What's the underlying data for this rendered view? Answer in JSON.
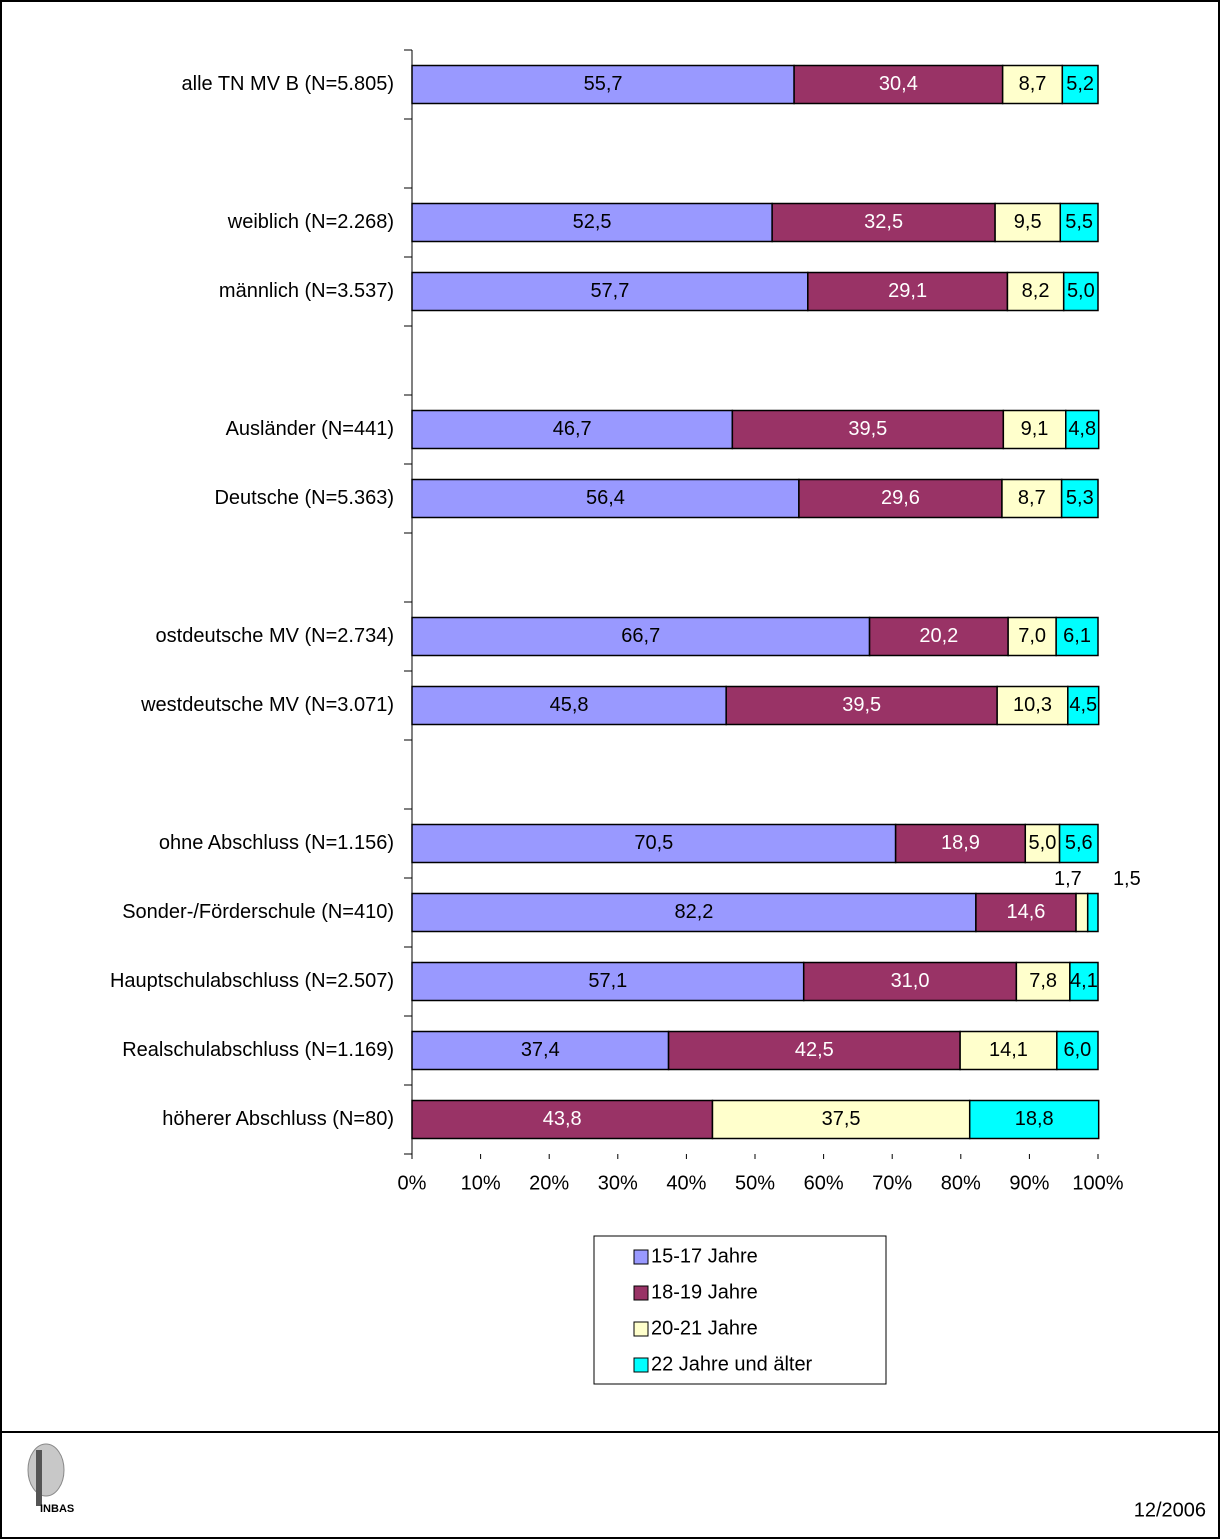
{
  "chart_data": {
    "type": "stacked-barh",
    "categories": [
      "alle TN MV B (N=5.805)",
      null,
      "weiblich (N=2.268)",
      "männlich (N=3.537)",
      null,
      "Ausländer (N=441)",
      "Deutsche (N=5.363)",
      null,
      "ostdeutsche MV (N=2.734)",
      "westdeutsche MV (N=3.071)",
      null,
      "ohne Abschluss (N=1.156)",
      "Sonder-/Förderschule (N=410)",
      "Hauptschulabschluss (N=2.507)",
      "Realschulabschluss (N=1.169)",
      "höherer Abschluss (N=80)"
    ],
    "series": [
      {
        "name": "15-17 Jahre",
        "color": "#9999ff",
        "label_color": "#000000",
        "values": [
          55.7,
          null,
          52.5,
          57.7,
          null,
          46.7,
          56.4,
          null,
          66.7,
          45.8,
          null,
          70.5,
          82.2,
          57.1,
          37.4,
          null
        ],
        "value_labels": [
          "55,7",
          null,
          "52,5",
          "57,7",
          null,
          "46,7",
          "56,4",
          null,
          "66,7",
          "45,8",
          null,
          "70,5",
          "82,2",
          "57,1",
          "37,4",
          null
        ]
      },
      {
        "name": "18-19 Jahre",
        "color": "#993366",
        "label_color": "#ffffff",
        "values": [
          30.4,
          null,
          32.5,
          29.1,
          null,
          39.5,
          29.6,
          null,
          20.2,
          39.5,
          null,
          18.9,
          14.6,
          31.0,
          42.5,
          43.8
        ],
        "value_labels": [
          "30,4",
          null,
          "32,5",
          "29,1",
          null,
          "39,5",
          "29,6",
          null,
          "20,2",
          "39,5",
          null,
          "18,9",
          "14,6",
          "31,0",
          "42,5",
          "43,8"
        ]
      },
      {
        "name": "20-21 Jahre",
        "color": "#ffffcc",
        "label_color": "#000000",
        "values": [
          8.7,
          null,
          9.5,
          8.2,
          null,
          9.1,
          8.7,
          null,
          7.0,
          10.3,
          null,
          5.0,
          1.7,
          7.8,
          14.1,
          37.5
        ],
        "value_labels": [
          "8,7",
          null,
          "9,5",
          "8,2",
          null,
          "9,1",
          "8,7",
          null,
          "7,0",
          "10,3",
          null,
          "5,0",
          "1,7",
          "7,8",
          "14,1",
          "37,5"
        ]
      },
      {
        "name": "22 Jahre und älter",
        "color": "#00ffff",
        "label_color": "#000000",
        "values": [
          5.2,
          null,
          5.5,
          5.0,
          null,
          4.8,
          5.3,
          null,
          6.1,
          4.5,
          null,
          5.6,
          1.5,
          4.1,
          6.0,
          18.8
        ],
        "value_labels": [
          "5,2",
          null,
          "5,5",
          "5,0",
          null,
          "4,8",
          "5,3",
          null,
          "6,1",
          "4,5",
          null,
          "5,6",
          "1,5",
          "4,1",
          "6,0",
          "18,8"
        ]
      }
    ],
    "xlim": [
      0,
      100
    ],
    "xticks": [
      {
        "value": 0,
        "label": "0%"
      },
      {
        "value": 10,
        "label": "10%"
      },
      {
        "value": 20,
        "label": "20%"
      },
      {
        "value": 30,
        "label": "30%"
      },
      {
        "value": 40,
        "label": "40%"
      },
      {
        "value": 50,
        "label": "50%"
      },
      {
        "value": 60,
        "label": "60%"
      },
      {
        "value": 70,
        "label": "70%"
      },
      {
        "value": 80,
        "label": "80%"
      },
      {
        "value": 90,
        "label": "90%"
      },
      {
        "value": 100,
        "label": "100%"
      }
    ],
    "legend": "bottom"
  },
  "footer": {
    "logo": "INBAS",
    "date": "12/2006"
  }
}
